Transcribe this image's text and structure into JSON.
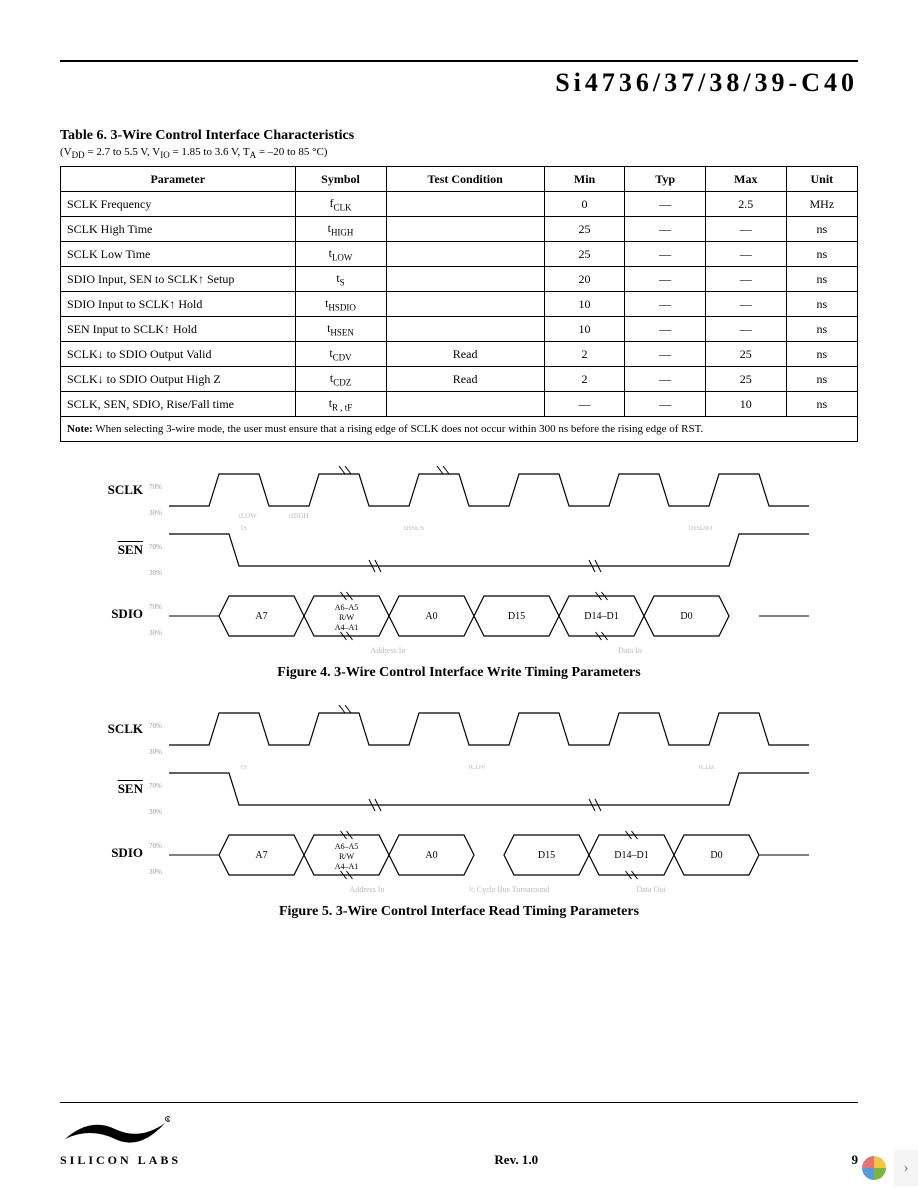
{
  "header": {
    "doc_title": "Si4736/37/38/39-C40"
  },
  "table6": {
    "title": "Table 6. 3-Wire Control Interface Characteristics",
    "conditions_prefix": "(V",
    "conditions_dd": "DD",
    "conditions_mid1": " = 2.7 to 5.5 V, V",
    "conditions_io": "IO",
    "conditions_mid2": " = 1.85 to 3.6 V, T",
    "conditions_a": "A",
    "conditions_tail": " = –20 to 85 °C)",
    "headers": [
      "Parameter",
      "Symbol",
      "Test Condition",
      "Min",
      "Typ",
      "Max",
      "Unit"
    ],
    "rows": [
      {
        "param": "SCLK Frequency",
        "sym": "f",
        "sub": "CLK",
        "cond": "",
        "min": "0",
        "typ": "—",
        "max": "2.5",
        "unit": "MHz"
      },
      {
        "param": "SCLK High Time",
        "sym": "t",
        "sub": "HIGH",
        "cond": "",
        "min": "25",
        "typ": "—",
        "max": "—",
        "unit": "ns"
      },
      {
        "param": "SCLK Low Time",
        "sym": "t",
        "sub": "LOW",
        "cond": "",
        "min": "25",
        "typ": "—",
        "max": "—",
        "unit": "ns"
      },
      {
        "param": "SDIO Input, SEN to SCLK↑ Setup",
        "sym": "t",
        "sub": "S",
        "cond": "",
        "min": "20",
        "typ": "—",
        "max": "—",
        "unit": "ns"
      },
      {
        "param": "SDIO Input to SCLK↑ Hold",
        "sym": "t",
        "sub": "HSDIO",
        "cond": "",
        "min": "10",
        "typ": "—",
        "max": "—",
        "unit": "ns"
      },
      {
        "param": "SEN Input to SCLK↑ Hold",
        "sym": "t",
        "sub": "HSEN",
        "cond": "",
        "min": "10",
        "typ": "—",
        "max": "—",
        "unit": "ns"
      },
      {
        "param": "SCLK↓ to SDIO Output Valid",
        "sym": "t",
        "sub": "CDV",
        "cond": "Read",
        "min": "2",
        "typ": "—",
        "max": "25",
        "unit": "ns"
      },
      {
        "param": "SCLK↓ to SDIO Output High Z",
        "sym": "t",
        "sub": "CDZ",
        "cond": "Read",
        "min": "2",
        "typ": "—",
        "max": "25",
        "unit": "ns"
      },
      {
        "param": "SCLK, SEN, SDIO, Rise/Fall time",
        "sym": "t",
        "sub": "R , tF",
        "cond": "",
        "min": "—",
        "typ": "—",
        "max": "10",
        "unit": "ns"
      }
    ],
    "note_label": "Note:",
    "note_text": "When selecting 3-wire mode, the user must ensure that a rising edge of SCLK does not occur within 300 ns before the rising edge of RST."
  },
  "timing": {
    "signal_sclk": "SCLK",
    "signal_sen": "SEN",
    "signal_sdio": "SDIO",
    "pct_hi": "70%",
    "pct_lo": "30%",
    "t_low": "tLOW",
    "t_high": "tHIGH",
    "t_s": "tS",
    "t_hsen": "tHSEN",
    "t_hsdio": "tHSDIO",
    "t_cdv": "tCDV",
    "t_cdz": "tCDZ",
    "addr_in": "Address In",
    "data_in": "Data In",
    "data_out": "Data Out",
    "bus_turn": "½ Cycle Bus Turnaround",
    "hex": {
      "a7": "A7",
      "a6a5": "A6–A5, R/W, A4–A1",
      "a0": "A0",
      "d15": "D15",
      "d14d1": "D14–D1",
      "d0": "D0"
    }
  },
  "figures": {
    "fig4": "Figure 4. 3-Wire Control Interface Write Timing Parameters",
    "fig5": "Figure 5. 3-Wire Control Interface Read Timing Parameters"
  },
  "footer": {
    "rev": "Rev. 1.0",
    "page": "9",
    "company": "SILICON LABS"
  },
  "style": {
    "bg": "#ffffff",
    "text": "#000000",
    "faint": "#bbbbbb",
    "stroke": "#000000",
    "stroke_width": 1.2,
    "font_body": 12,
    "font_title": 14
  }
}
